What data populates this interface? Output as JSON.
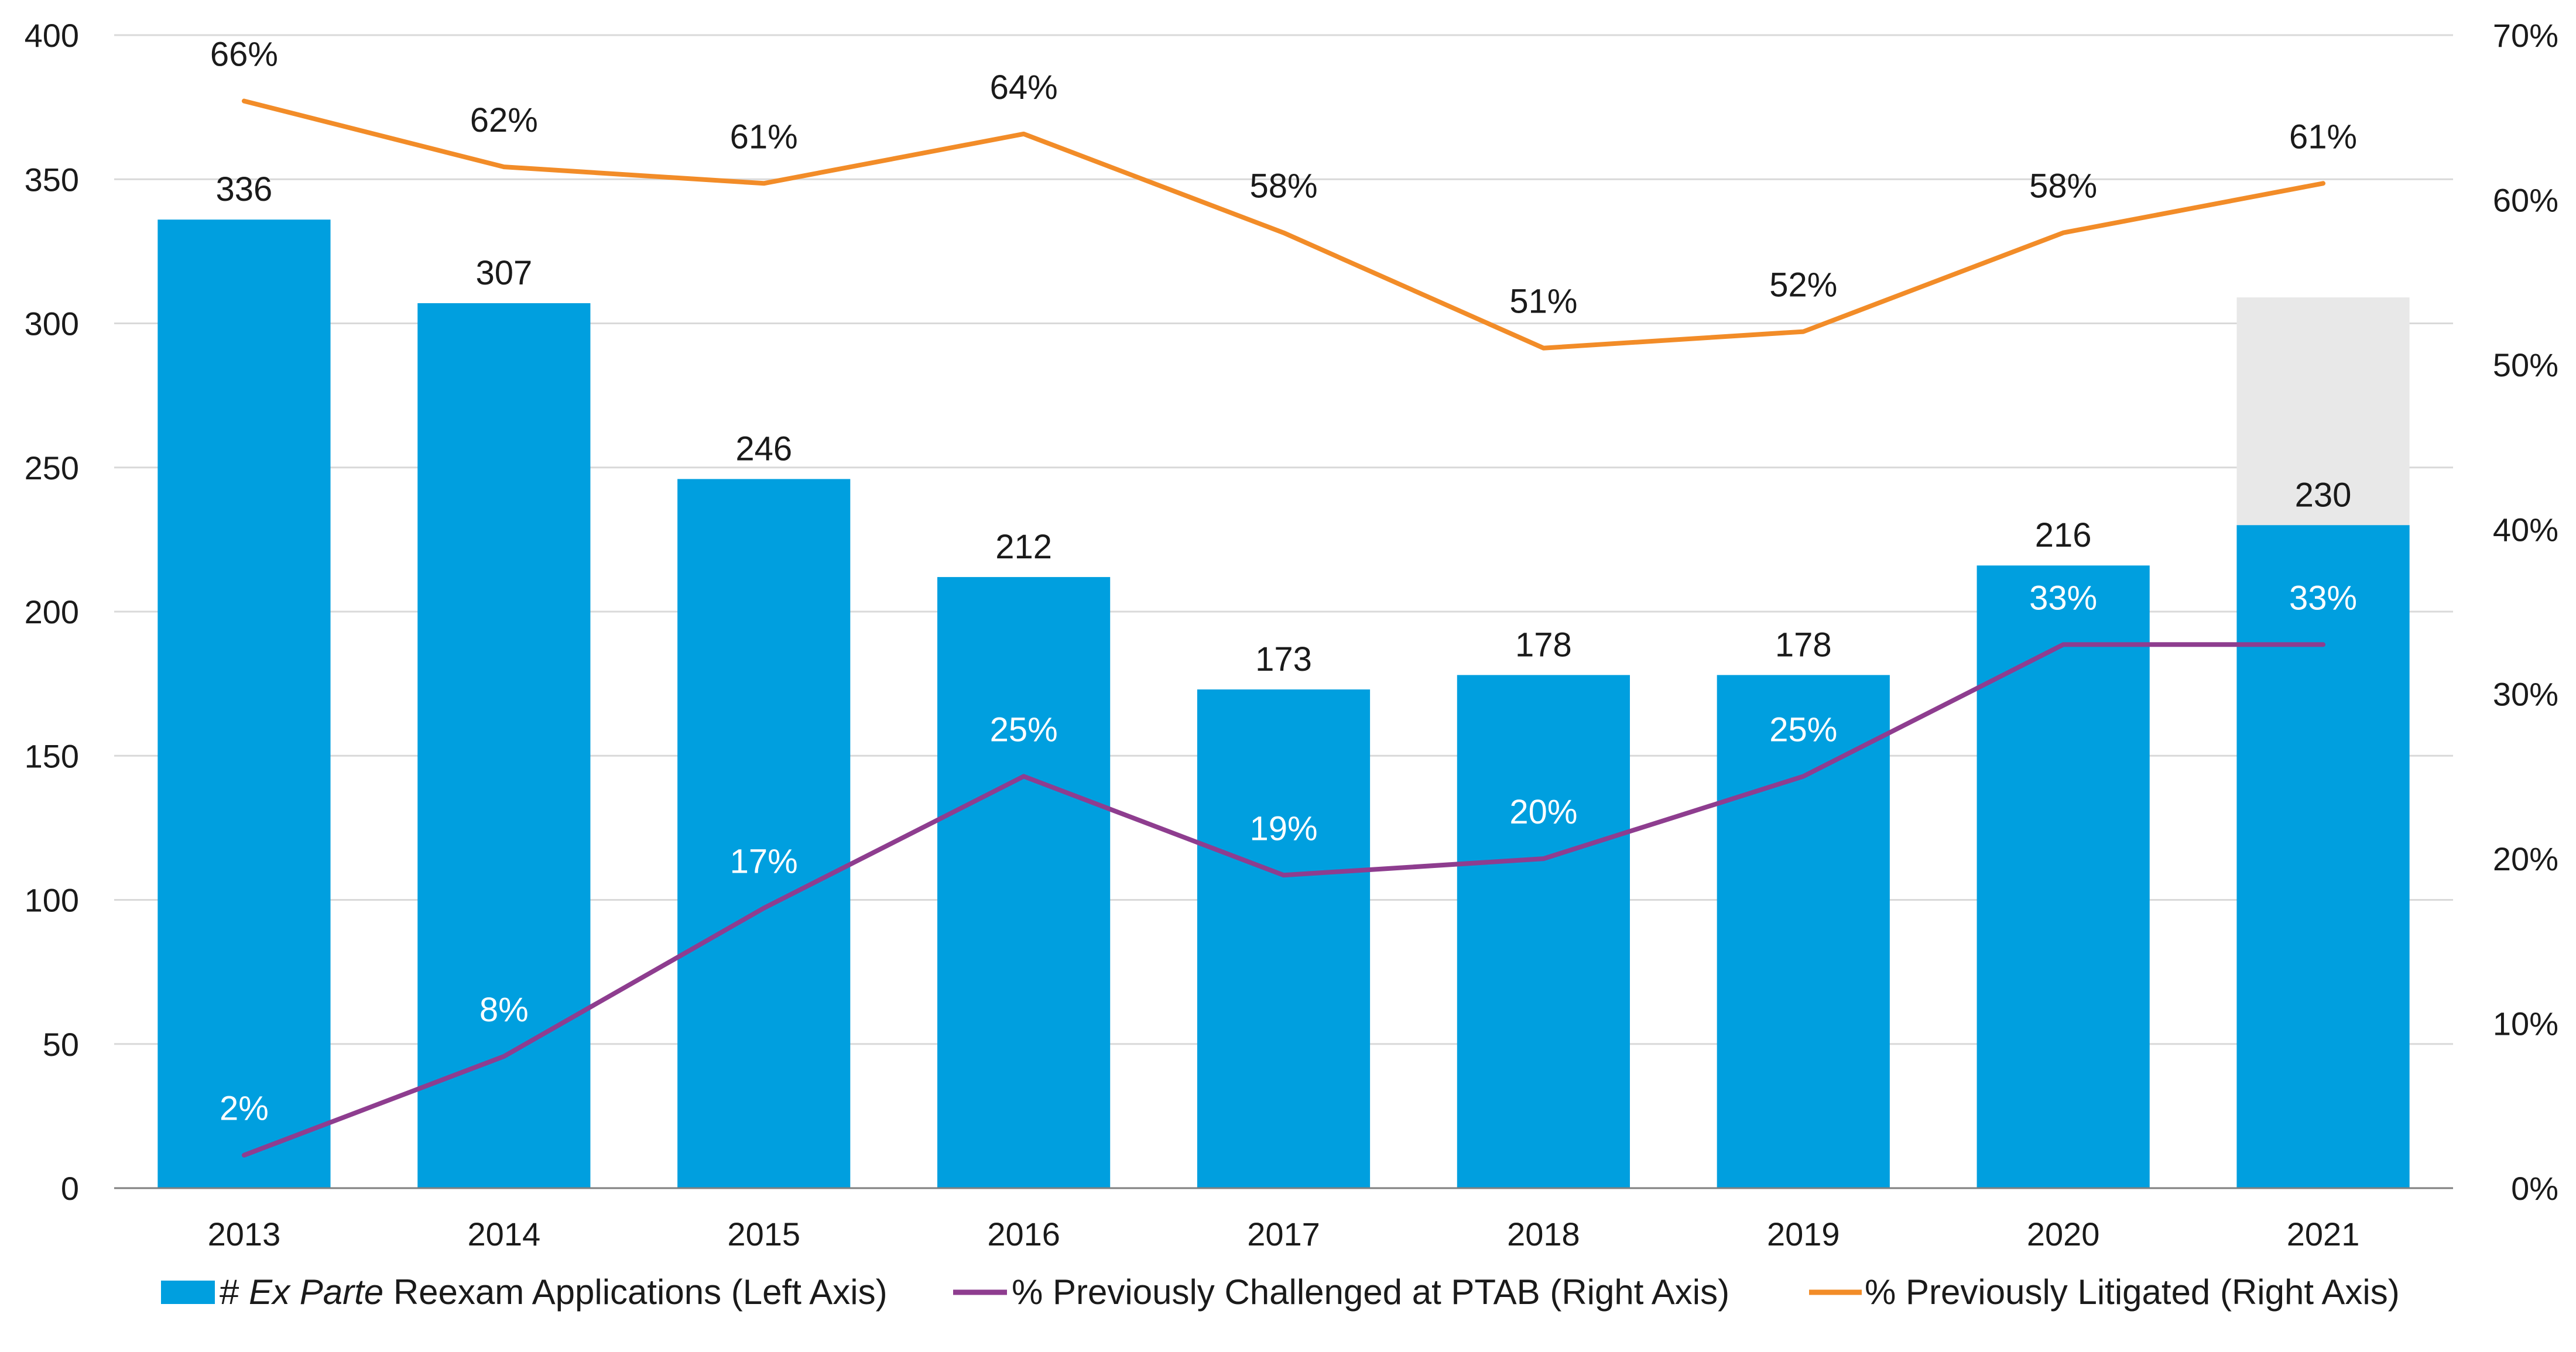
{
  "chart_data": {
    "type": "bar",
    "categories": [
      "2013",
      "2014",
      "2015",
      "2016",
      "2017",
      "2018",
      "2019",
      "2020",
      "2021"
    ],
    "series": [
      {
        "name": "# Ex Parte Reexam Applications (Left Axis)",
        "legend_prefix": "#",
        "legend_italic": "Ex Parte",
        "legend_suffix": "Reexam Applications (Left Axis)",
        "type": "bar",
        "axis": "left",
        "values": [
          336,
          307,
          246,
          212,
          173,
          178,
          178,
          216,
          230
        ],
        "labels": [
          "336",
          "307",
          "246",
          "212",
          "173",
          "178",
          "178",
          "216",
          "230"
        ],
        "color": "#009fdf"
      },
      {
        "name": "% Previously Challenged at PTAB (Right Axis)",
        "type": "line",
        "axis": "right",
        "values": [
          2,
          8,
          17,
          25,
          19,
          20,
          25,
          33,
          33
        ],
        "labels": [
          "2%",
          "8%",
          "17%",
          "25%",
          "19%",
          "20%",
          "25%",
          "33%",
          "33%"
        ],
        "color": "#8e3d8f",
        "label_color": "#ffffff"
      },
      {
        "name": "% Previously Litigated (Right Axis)",
        "type": "line",
        "axis": "right",
        "values": [
          66,
          62,
          61,
          64,
          58,
          51,
          52,
          58,
          61
        ],
        "labels": [
          "66%",
          "62%",
          "61%",
          "64%",
          "58%",
          "51%",
          "52%",
          "58%",
          "61%"
        ],
        "color": "#f28c28",
        "label_color": "#1a1a1a"
      }
    ],
    "projection": {
      "category": "2021",
      "value": 309,
      "color": "#e8e8e8"
    },
    "left_axis": {
      "ylim": [
        0,
        400
      ],
      "ticks": [
        "0",
        "50",
        "100",
        "150",
        "200",
        "250",
        "300",
        "350",
        "400"
      ],
      "tick_values": [
        0,
        50,
        100,
        150,
        200,
        250,
        300,
        350,
        400
      ]
    },
    "right_axis": {
      "ylim": [
        0,
        70
      ],
      "ticks": [
        "0%",
        "10%",
        "20%",
        "30%",
        "40%",
        "50%",
        "60%",
        "70%"
      ],
      "tick_values": [
        0,
        10,
        20,
        30,
        40,
        50,
        60,
        70
      ]
    },
    "grid": true,
    "grid_color": "#d9d9d9",
    "legend_position": "bottom",
    "title": "",
    "xlabel": "",
    "ylabel": ""
  }
}
